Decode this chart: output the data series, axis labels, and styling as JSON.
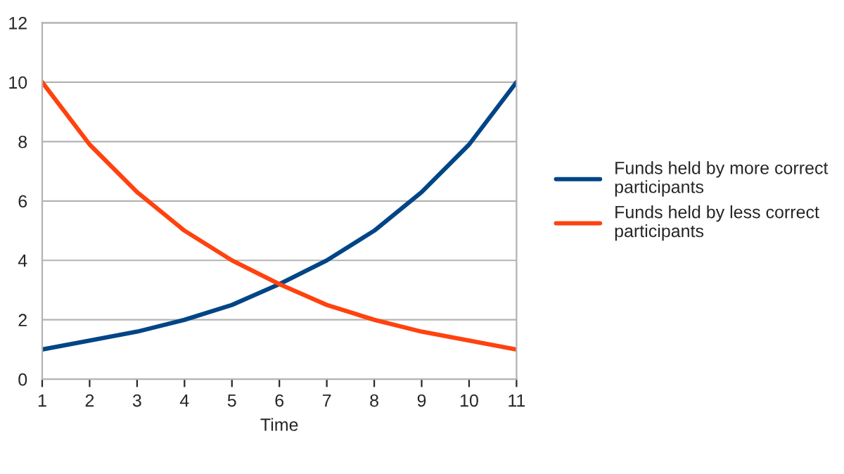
{
  "chart_data": {
    "type": "line",
    "xlabel": "Time",
    "x": [
      1,
      2,
      3,
      4,
      5,
      6,
      7,
      8,
      9,
      10,
      11
    ],
    "series": [
      {
        "name": "Funds held by more correct participants",
        "color": "#004586",
        "values": [
          1,
          1.3,
          1.6,
          2,
          2.5,
          3.2,
          4,
          5,
          6.3,
          7.9,
          10
        ]
      },
      {
        "name": "Funds held by less correct participants",
        "color": "#ff420e",
        "values": [
          10,
          7.9,
          6.3,
          5,
          4,
          3.2,
          2.5,
          2,
          1.6,
          1.3,
          1
        ]
      }
    ],
    "xlim": [
      1,
      11
    ],
    "xticks": [
      1,
      2,
      3,
      4,
      5,
      6,
      7,
      8,
      9,
      10,
      11
    ],
    "ylim": [
      0,
      12
    ],
    "yticks": [
      0,
      2,
      4,
      6,
      8,
      10,
      12
    ],
    "grid": "y",
    "legend": "right",
    "marker": "none",
    "line_style": "solid"
  }
}
